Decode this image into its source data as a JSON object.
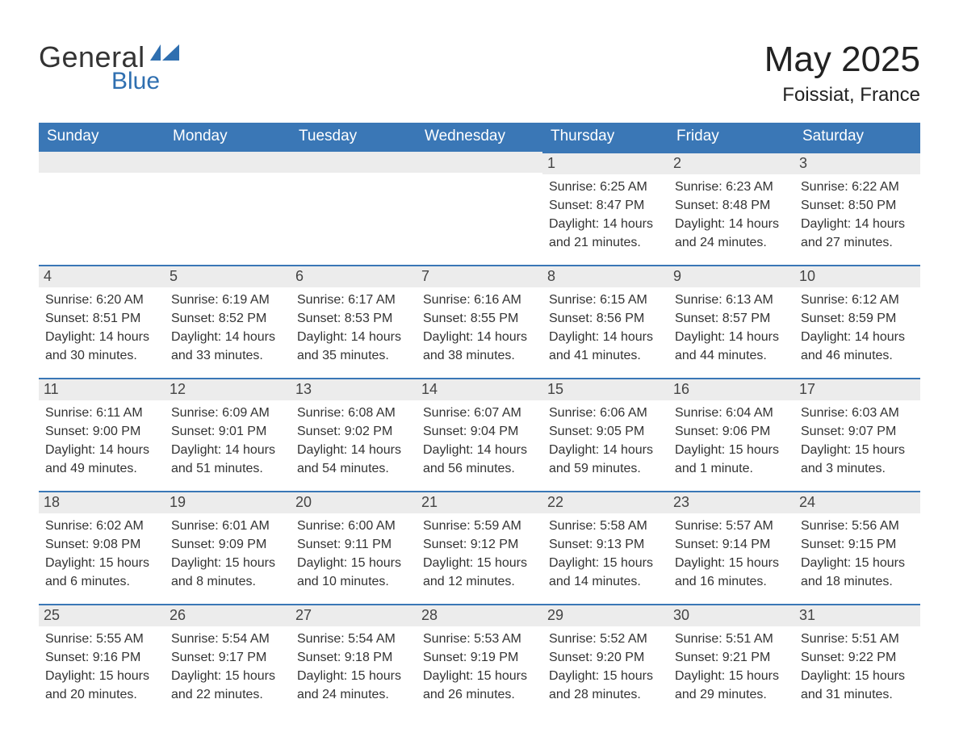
{
  "brand": {
    "word1": "General",
    "word2": "Blue",
    "word1_color": "#333333",
    "word2_color": "#2f6fb0",
    "flag_color": "#2f6fb0"
  },
  "title": {
    "month_year": "May 2025",
    "location": "Foissiat, France"
  },
  "colors": {
    "header_bg": "#3a77b6",
    "header_text": "#ffffff",
    "day_bar_bg": "#ececec",
    "day_bar_border": "#3a77b6",
    "body_text": "#333333",
    "page_bg": "#ffffff"
  },
  "weekdays": [
    "Sunday",
    "Monday",
    "Tuesday",
    "Wednesday",
    "Thursday",
    "Friday",
    "Saturday"
  ],
  "weeks": [
    [
      {
        "empty": true
      },
      {
        "empty": true
      },
      {
        "empty": true
      },
      {
        "empty": true
      },
      {
        "day": "1",
        "sunrise": "Sunrise: 6:25 AM",
        "sunset": "Sunset: 8:47 PM",
        "daylight1": "Daylight: 14 hours",
        "daylight2": "and 21 minutes."
      },
      {
        "day": "2",
        "sunrise": "Sunrise: 6:23 AM",
        "sunset": "Sunset: 8:48 PM",
        "daylight1": "Daylight: 14 hours",
        "daylight2": "and 24 minutes."
      },
      {
        "day": "3",
        "sunrise": "Sunrise: 6:22 AM",
        "sunset": "Sunset: 8:50 PM",
        "daylight1": "Daylight: 14 hours",
        "daylight2": "and 27 minutes."
      }
    ],
    [
      {
        "day": "4",
        "sunrise": "Sunrise: 6:20 AM",
        "sunset": "Sunset: 8:51 PM",
        "daylight1": "Daylight: 14 hours",
        "daylight2": "and 30 minutes."
      },
      {
        "day": "5",
        "sunrise": "Sunrise: 6:19 AM",
        "sunset": "Sunset: 8:52 PM",
        "daylight1": "Daylight: 14 hours",
        "daylight2": "and 33 minutes."
      },
      {
        "day": "6",
        "sunrise": "Sunrise: 6:17 AM",
        "sunset": "Sunset: 8:53 PM",
        "daylight1": "Daylight: 14 hours",
        "daylight2": "and 35 minutes."
      },
      {
        "day": "7",
        "sunrise": "Sunrise: 6:16 AM",
        "sunset": "Sunset: 8:55 PM",
        "daylight1": "Daylight: 14 hours",
        "daylight2": "and 38 minutes."
      },
      {
        "day": "8",
        "sunrise": "Sunrise: 6:15 AM",
        "sunset": "Sunset: 8:56 PM",
        "daylight1": "Daylight: 14 hours",
        "daylight2": "and 41 minutes."
      },
      {
        "day": "9",
        "sunrise": "Sunrise: 6:13 AM",
        "sunset": "Sunset: 8:57 PM",
        "daylight1": "Daylight: 14 hours",
        "daylight2": "and 44 minutes."
      },
      {
        "day": "10",
        "sunrise": "Sunrise: 6:12 AM",
        "sunset": "Sunset: 8:59 PM",
        "daylight1": "Daylight: 14 hours",
        "daylight2": "and 46 minutes."
      }
    ],
    [
      {
        "day": "11",
        "sunrise": "Sunrise: 6:11 AM",
        "sunset": "Sunset: 9:00 PM",
        "daylight1": "Daylight: 14 hours",
        "daylight2": "and 49 minutes."
      },
      {
        "day": "12",
        "sunrise": "Sunrise: 6:09 AM",
        "sunset": "Sunset: 9:01 PM",
        "daylight1": "Daylight: 14 hours",
        "daylight2": "and 51 minutes."
      },
      {
        "day": "13",
        "sunrise": "Sunrise: 6:08 AM",
        "sunset": "Sunset: 9:02 PM",
        "daylight1": "Daylight: 14 hours",
        "daylight2": "and 54 minutes."
      },
      {
        "day": "14",
        "sunrise": "Sunrise: 6:07 AM",
        "sunset": "Sunset: 9:04 PM",
        "daylight1": "Daylight: 14 hours",
        "daylight2": "and 56 minutes."
      },
      {
        "day": "15",
        "sunrise": "Sunrise: 6:06 AM",
        "sunset": "Sunset: 9:05 PM",
        "daylight1": "Daylight: 14 hours",
        "daylight2": "and 59 minutes."
      },
      {
        "day": "16",
        "sunrise": "Sunrise: 6:04 AM",
        "sunset": "Sunset: 9:06 PM",
        "daylight1": "Daylight: 15 hours",
        "daylight2": "and 1 minute."
      },
      {
        "day": "17",
        "sunrise": "Sunrise: 6:03 AM",
        "sunset": "Sunset: 9:07 PM",
        "daylight1": "Daylight: 15 hours",
        "daylight2": "and 3 minutes."
      }
    ],
    [
      {
        "day": "18",
        "sunrise": "Sunrise: 6:02 AM",
        "sunset": "Sunset: 9:08 PM",
        "daylight1": "Daylight: 15 hours",
        "daylight2": "and 6 minutes."
      },
      {
        "day": "19",
        "sunrise": "Sunrise: 6:01 AM",
        "sunset": "Sunset: 9:09 PM",
        "daylight1": "Daylight: 15 hours",
        "daylight2": "and 8 minutes."
      },
      {
        "day": "20",
        "sunrise": "Sunrise: 6:00 AM",
        "sunset": "Sunset: 9:11 PM",
        "daylight1": "Daylight: 15 hours",
        "daylight2": "and 10 minutes."
      },
      {
        "day": "21",
        "sunrise": "Sunrise: 5:59 AM",
        "sunset": "Sunset: 9:12 PM",
        "daylight1": "Daylight: 15 hours",
        "daylight2": "and 12 minutes."
      },
      {
        "day": "22",
        "sunrise": "Sunrise: 5:58 AM",
        "sunset": "Sunset: 9:13 PM",
        "daylight1": "Daylight: 15 hours",
        "daylight2": "and 14 minutes."
      },
      {
        "day": "23",
        "sunrise": "Sunrise: 5:57 AM",
        "sunset": "Sunset: 9:14 PM",
        "daylight1": "Daylight: 15 hours",
        "daylight2": "and 16 minutes."
      },
      {
        "day": "24",
        "sunrise": "Sunrise: 5:56 AM",
        "sunset": "Sunset: 9:15 PM",
        "daylight1": "Daylight: 15 hours",
        "daylight2": "and 18 minutes."
      }
    ],
    [
      {
        "day": "25",
        "sunrise": "Sunrise: 5:55 AM",
        "sunset": "Sunset: 9:16 PM",
        "daylight1": "Daylight: 15 hours",
        "daylight2": "and 20 minutes."
      },
      {
        "day": "26",
        "sunrise": "Sunrise: 5:54 AM",
        "sunset": "Sunset: 9:17 PM",
        "daylight1": "Daylight: 15 hours",
        "daylight2": "and 22 minutes."
      },
      {
        "day": "27",
        "sunrise": "Sunrise: 5:54 AM",
        "sunset": "Sunset: 9:18 PM",
        "daylight1": "Daylight: 15 hours",
        "daylight2": "and 24 minutes."
      },
      {
        "day": "28",
        "sunrise": "Sunrise: 5:53 AM",
        "sunset": "Sunset: 9:19 PM",
        "daylight1": "Daylight: 15 hours",
        "daylight2": "and 26 minutes."
      },
      {
        "day": "29",
        "sunrise": "Sunrise: 5:52 AM",
        "sunset": "Sunset: 9:20 PM",
        "daylight1": "Daylight: 15 hours",
        "daylight2": "and 28 minutes."
      },
      {
        "day": "30",
        "sunrise": "Sunrise: 5:51 AM",
        "sunset": "Sunset: 9:21 PM",
        "daylight1": "Daylight: 15 hours",
        "daylight2": "and 29 minutes."
      },
      {
        "day": "31",
        "sunrise": "Sunrise: 5:51 AM",
        "sunset": "Sunset: 9:22 PM",
        "daylight1": "Daylight: 15 hours",
        "daylight2": "and 31 minutes."
      }
    ]
  ]
}
